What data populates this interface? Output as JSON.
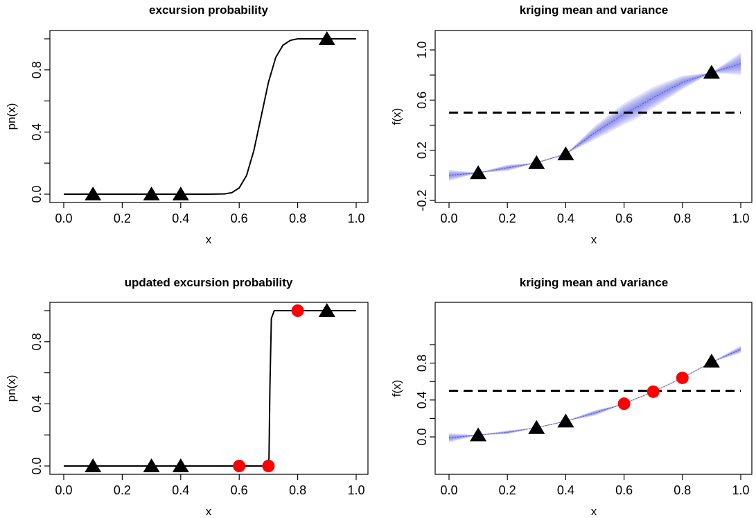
{
  "chart_data": [
    {
      "type": "line",
      "title": "excursion probability",
      "xlabel": "x",
      "ylabel": "pn(x)",
      "xlim": [
        0,
        1
      ],
      "ylim": [
        0,
        1
      ],
      "x_ticks": [
        0,
        0.2,
        0.4,
        0.6,
        0.8,
        1
      ],
      "x_tick_labels": [
        "0.0",
        "0.2",
        "0.4",
        "0.6",
        "0.8",
        "1.0"
      ],
      "y_ticks": [
        0,
        0.4,
        0.8
      ],
      "y_tick_labels": [
        "0.0",
        "0.4",
        "0.8"
      ],
      "y_minor_ticks": [
        0.2,
        0.6,
        1.0
      ],
      "series": [
        {
          "kind": "line",
          "color": "#000000",
          "x": [
            0,
            0.5,
            0.55,
            0.575,
            0.6,
            0.625,
            0.65,
            0.675,
            0.7,
            0.725,
            0.75,
            0.775,
            0.8,
            0.85,
            0.9,
            1.0
          ],
          "y": [
            0,
            0,
            0.002,
            0.01,
            0.04,
            0.12,
            0.28,
            0.5,
            0.72,
            0.88,
            0.96,
            0.99,
            1.0,
            1.0,
            1.0,
            1.0
          ]
        },
        {
          "kind": "triangle",
          "color": "#000000",
          "x": [
            0.1,
            0.3,
            0.4,
            0.9
          ],
          "y": [
            0,
            0,
            0,
            1
          ]
        }
      ]
    },
    {
      "type": "line",
      "title": "kriging mean and variance",
      "xlabel": "x",
      "ylabel": "f(x)",
      "xlim": [
        0,
        1
      ],
      "ylim": [
        -0.2,
        1.0
      ],
      "x_ticks": [
        0,
        0.2,
        0.4,
        0.6,
        0.8,
        1
      ],
      "x_tick_labels": [
        "0.0",
        "0.2",
        "0.4",
        "0.6",
        "0.8",
        "1.0"
      ],
      "y_ticks": [
        -0.2,
        0.2,
        0.6,
        1.0
      ],
      "y_tick_labels": [
        "-0.2",
        "0.2",
        "0.6",
        "1.0"
      ],
      "y_minor_ticks": [
        0,
        0.4,
        0.8
      ],
      "threshold": 0.5,
      "band": {
        "color": "#6a6ae6",
        "x": [
          0,
          0.1,
          0.2,
          0.3,
          0.4,
          0.5,
          0.6,
          0.65,
          0.7,
          0.8,
          0.9,
          1.0
        ],
        "mean": [
          0,
          0.02,
          0.06,
          0.1,
          0.17,
          0.34,
          0.49,
          0.55,
          0.62,
          0.74,
          0.82,
          0.89
        ],
        "sd": [
          0.045,
          0.0,
          0.025,
          0.0,
          0.0,
          0.055,
          0.085,
          0.09,
          0.085,
          0.055,
          0.0,
          0.09
        ]
      },
      "series": [
        {
          "kind": "triangle",
          "color": "#000000",
          "x": [
            0.1,
            0.3,
            0.4,
            0.9
          ],
          "y": [
            0.02,
            0.1,
            0.17,
            0.82
          ]
        }
      ]
    },
    {
      "type": "line",
      "title": "updated excursion probability",
      "xlabel": "x",
      "ylabel": "pn(x)",
      "xlim": [
        0,
        1
      ],
      "ylim": [
        0,
        1
      ],
      "x_ticks": [
        0,
        0.2,
        0.4,
        0.6,
        0.8,
        1
      ],
      "x_tick_labels": [
        "0.0",
        "0.2",
        "0.4",
        "0.6",
        "0.8",
        "1.0"
      ],
      "y_ticks": [
        0,
        0.4,
        0.8
      ],
      "y_tick_labels": [
        "0.0",
        "0.4",
        "0.8"
      ],
      "y_minor_ticks": [
        0.2,
        0.6,
        1.0
      ],
      "series": [
        {
          "kind": "line",
          "color": "#000000",
          "x": [
            0,
            0.695,
            0.702,
            0.705,
            0.71,
            0.72,
            1.0
          ],
          "y": [
            0,
            0,
            0.05,
            0.5,
            0.95,
            1.0,
            1.0
          ]
        },
        {
          "kind": "triangle",
          "color": "#000000",
          "x": [
            0.1,
            0.3,
            0.4,
            0.9
          ],
          "y": [
            0,
            0,
            0,
            1
          ]
        },
        {
          "kind": "circle",
          "color": "#ff0000",
          "x": [
            0.6,
            0.7,
            0.8
          ],
          "y": [
            0,
            0,
            1
          ]
        }
      ]
    },
    {
      "type": "line",
      "title": "kriging mean and variance",
      "xlabel": "x",
      "ylabel": "f(x)",
      "xlim": [
        0,
        1
      ],
      "ylim": [
        -0.15,
        1.0
      ],
      "x_ticks": [
        0,
        0.2,
        0.4,
        0.6,
        0.8,
        1
      ],
      "x_tick_labels": [
        "0.0",
        "0.2",
        "0.4",
        "0.6",
        "0.8",
        "1.0"
      ],
      "y_ticks": [
        0,
        0.4,
        0.8
      ],
      "y_tick_labels": [
        "0.0",
        "0.4",
        "0.8"
      ],
      "y_minor_ticks": [
        0.2,
        0.6,
        1.0
      ],
      "threshold": 0.5,
      "band": {
        "color": "#6a6ae6",
        "x": [
          0,
          0.1,
          0.2,
          0.3,
          0.4,
          0.5,
          0.6,
          0.7,
          0.8,
          0.9,
          1.0
        ],
        "mean": [
          -0.01,
          0.02,
          0.05,
          0.1,
          0.17,
          0.26,
          0.36,
          0.49,
          0.64,
          0.81,
          0.95
        ],
        "sd": [
          0.05,
          0.0,
          0.02,
          0.0,
          0.0,
          0.03,
          0.0,
          0.0,
          0.0,
          0.0,
          0.04
        ]
      },
      "series": [
        {
          "kind": "triangle",
          "color": "#000000",
          "x": [
            0.1,
            0.3,
            0.4,
            0.9
          ],
          "y": [
            0.02,
            0.1,
            0.17,
            0.82
          ]
        },
        {
          "kind": "circle",
          "color": "#ff0000",
          "x": [
            0.6,
            0.7,
            0.8
          ],
          "y": [
            0.36,
            0.49,
            0.64
          ]
        }
      ]
    }
  ]
}
